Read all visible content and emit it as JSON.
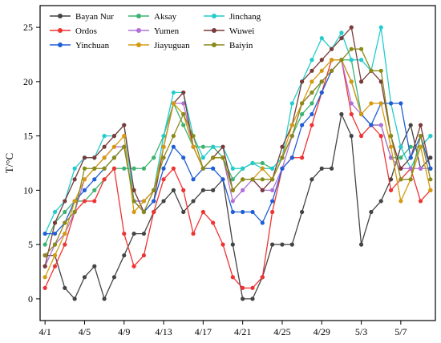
{
  "chart_data": {
    "type": "line",
    "ylabel": "T/°C",
    "xlabel": "",
    "ylim": [
      -2,
      27
    ],
    "y_ticks": [
      0,
      5,
      10,
      15,
      20,
      25
    ],
    "x_tick_labels": [
      "4/1",
      "4/5",
      "4/9",
      "4/13",
      "4/17",
      "4/21",
      "4/25",
      "4/29",
      "5/3",
      "5/7"
    ],
    "x_tick_every": 4,
    "x": [
      "4/1",
      "4/2",
      "4/3",
      "4/4",
      "4/5",
      "4/6",
      "4/7",
      "4/8",
      "4/9",
      "4/10",
      "4/11",
      "4/12",
      "4/13",
      "4/14",
      "4/15",
      "4/16",
      "4/17",
      "4/18",
      "4/19",
      "4/20",
      "4/21",
      "4/22",
      "4/23",
      "4/24",
      "4/25",
      "4/26",
      "4/27",
      "4/28",
      "4/29",
      "4/30",
      "5/1",
      "5/2",
      "5/3",
      "5/4",
      "5/5",
      "5/6",
      "5/7",
      "5/8",
      "5/9",
      "5/10"
    ],
    "legend_position": "top-left",
    "grid": false,
    "series": [
      {
        "name": "Bayan Nur",
        "color": "#444444",
        "values": [
          4,
          4,
          1,
          0,
          2,
          3,
          0,
          2,
          4,
          6,
          6,
          8,
          9,
          10,
          8,
          9,
          10,
          10,
          11,
          5,
          0,
          0,
          2,
          5,
          5,
          5,
          8,
          11,
          12,
          12,
          17,
          15,
          5,
          8,
          9,
          11,
          14,
          16,
          12,
          13
        ]
      },
      {
        "name": "Aksay",
        "color": "#3cb371",
        "values": [
          5,
          7,
          8,
          9,
          9,
          10,
          11,
          12,
          12,
          12,
          12,
          13,
          15,
          18,
          16,
          14,
          14,
          14,
          13,
          11,
          12,
          12.5,
          12.5,
          12,
          13,
          15,
          17,
          18,
          20,
          21,
          22,
          22,
          17,
          16,
          16,
          13,
          13,
          14,
          14,
          15
        ]
      },
      {
        "name": "Jinchang",
        "color": "#22cccc",
        "values": [
          6,
          8,
          9,
          12,
          13,
          13,
          15,
          15,
          16,
          9,
          9,
          10,
          15,
          19,
          19,
          15,
          13,
          14,
          14,
          12,
          12,
          12.5,
          12,
          12,
          13,
          18,
          20,
          22,
          24,
          23,
          24.5,
          22,
          22,
          21,
          25,
          18,
          14,
          12,
          14,
          15
        ]
      },
      {
        "name": "Ordos",
        "color": "#ee3333",
        "values": [
          1,
          3,
          5,
          8,
          9,
          9,
          11,
          12,
          6,
          3,
          4,
          8,
          11,
          12,
          10,
          6,
          8,
          7,
          5,
          2,
          1,
          1,
          2,
          8,
          12,
          13,
          13,
          16,
          19,
          22,
          22,
          17,
          15,
          16,
          15,
          10,
          11,
          12,
          9,
          10
        ]
      },
      {
        "name": "Yumen",
        "color": "#b070d8",
        "values": [
          3,
          5,
          6,
          8,
          11,
          12,
          13,
          14,
          14,
          9,
          9,
          10,
          14,
          18,
          18,
          14,
          12,
          13,
          13,
          9,
          10,
          11,
          10,
          10,
          12,
          15,
          18,
          19,
          20,
          21,
          22,
          18,
          17,
          16,
          16,
          13,
          12,
          12,
          12,
          12
        ]
      },
      {
        "name": "Wuwei",
        "color": "#7a3a3a",
        "values": [
          3,
          7,
          9,
          11,
          13,
          13,
          14,
          15,
          16,
          10,
          8,
          9,
          14,
          18,
          19,
          14,
          12,
          13,
          14,
          10,
          11,
          11,
          10,
          11,
          14,
          16,
          20,
          21,
          22,
          23,
          24,
          25,
          20,
          21,
          20,
          15,
          12,
          13,
          16,
          12
        ]
      },
      {
        "name": "Yinchuan",
        "color": "#1f5fd6",
        "values": [
          6,
          6,
          7,
          9,
          10,
          11,
          12,
          13,
          14,
          9,
          8,
          9,
          12,
          14,
          13,
          11,
          12,
          12,
          11,
          8,
          8,
          8,
          7,
          9,
          12,
          13,
          16,
          17,
          19,
          21,
          22,
          20,
          17,
          16,
          18,
          18,
          18,
          13,
          15,
          12
        ]
      },
      {
        "name": "Jiayuguan",
        "color": "#d49a10",
        "values": [
          2,
          4,
          6,
          9,
          11,
          12,
          13,
          14,
          15,
          8,
          9,
          10,
          14,
          18,
          17,
          14,
          12,
          13,
          13,
          10,
          11,
          11,
          12,
          11,
          13,
          16,
          18,
          20,
          21,
          22,
          22,
          20,
          17,
          18,
          18,
          14,
          9,
          11,
          14,
          10
        ]
      },
      {
        "name": "Baiyin",
        "color": "#8a8a1a",
        "values": [
          4,
          5,
          7,
          8,
          12,
          12,
          12,
          13,
          14,
          9,
          8,
          10,
          13,
          15,
          17,
          15,
          12,
          13,
          13,
          10,
          11,
          11,
          11,
          11,
          13,
          15,
          18,
          19,
          20,
          21,
          22,
          23,
          23,
          21,
          21,
          15,
          11,
          11,
          15,
          11
        ]
      }
    ]
  }
}
